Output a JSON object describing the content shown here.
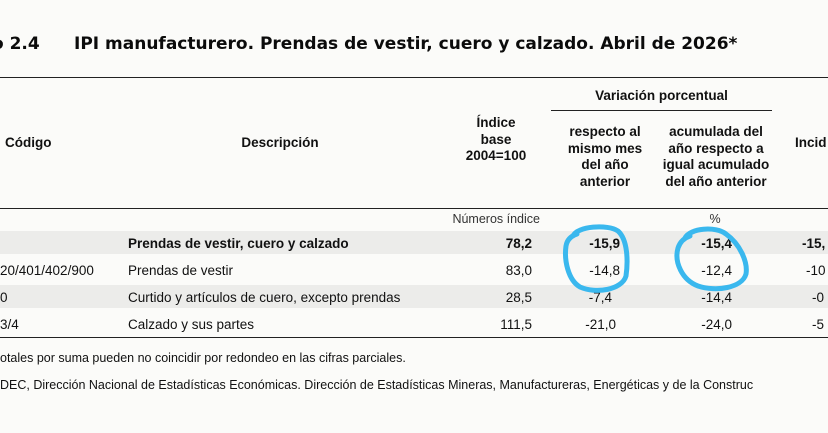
{
  "title": {
    "number": "o 2.4",
    "text": "IPI manufacturero. Prendas de vestir, cuero y calzado. Abril de 2026*"
  },
  "header": {
    "codigo": "Código",
    "descripcion": "Descripción",
    "indice_base": [
      "Índice",
      "base",
      "2004=100"
    ],
    "variacion": "Variación porcentual",
    "respecto": [
      "respecto al",
      "mismo mes",
      "del año",
      "anterior"
    ],
    "acumulada": [
      "acumulada del",
      "año respecto a",
      "igual acumulado",
      "del año anterior"
    ],
    "incidencia": "Incid"
  },
  "units": {
    "indices": "Números índice",
    "percent": "%"
  },
  "rows": [
    {
      "codigo": "",
      "descripcion": "Prendas de vestir, cuero y calzado",
      "indice": "78,2",
      "respecto": "-15,9",
      "acumulada": "-15,4",
      "incidencia": "-15,",
      "bold": true
    },
    {
      "codigo": "20/401/402/900",
      "descripcion": "Prendas de vestir",
      "indice": "83,0",
      "respecto": "-14,8",
      "acumulada": "-12,4",
      "incidencia": "-10",
      "bold": false
    },
    {
      "codigo": "0",
      "descripcion": "Curtido y artículos de cuero, excepto prendas",
      "indice": "28,5",
      "respecto": "-7,4",
      "acumulada": "-14,4",
      "incidencia": "-0",
      "bold": false
    },
    {
      "codigo": "3/4",
      "descripcion": "Calzado y sus partes",
      "indice": "111,5",
      "respecto": "-21,0",
      "acumulada": "-24,0",
      "incidencia": "-5",
      "bold": false
    }
  ],
  "notes": [
    "otales por suma pueden no coincidir por redondeo en las cifras parciales.",
    "DEC, Dirección Nacional de Estadísticas Económicas. Dirección de Estadísticas Mineras, Manufactureras, Energéticas y de la Construc"
  ],
  "colors": {
    "highlight": "#3ab8ee",
    "band": "#ececea"
  }
}
